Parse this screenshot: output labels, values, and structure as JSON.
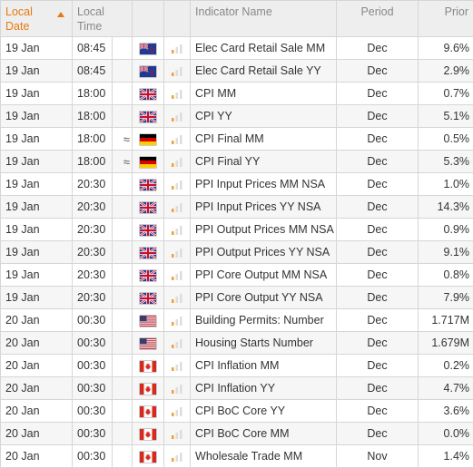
{
  "header": {
    "local_date": [
      "Local",
      "Date"
    ],
    "local_time": [
      "Local",
      "Time"
    ],
    "indicator": "Indicator Name",
    "period": "Period",
    "prior": "Prior"
  },
  "colors": {
    "accent": "#e8790f",
    "bar_active": "#f0a030",
    "bar_inactive": "#dddddd"
  },
  "rows": [
    {
      "date": "19 Jan",
      "time": "08:45",
      "approx": "",
      "flag": "nz-flag-icon",
      "importance": 1,
      "indicator": "Elec Card Retail Sale MM",
      "period": "Dec",
      "prior": "9.6%"
    },
    {
      "date": "19 Jan",
      "time": "08:45",
      "approx": "",
      "flag": "nz-flag-icon",
      "importance": 1,
      "indicator": "Elec Card Retail Sale YY",
      "period": "Dec",
      "prior": "2.9%"
    },
    {
      "date": "19 Jan",
      "time": "18:00",
      "approx": "",
      "flag": "uk-flag-icon",
      "importance": 1,
      "indicator": "CPI MM",
      "period": "Dec",
      "prior": "0.7%"
    },
    {
      "date": "19 Jan",
      "time": "18:00",
      "approx": "",
      "flag": "uk-flag-icon",
      "importance": 1,
      "indicator": "CPI YY",
      "period": "Dec",
      "prior": "5.1%"
    },
    {
      "date": "19 Jan",
      "time": "18:00",
      "approx": "≈",
      "flag": "de-flag-icon",
      "importance": 1,
      "indicator": "CPI Final MM",
      "period": "Dec",
      "prior": "0.5%"
    },
    {
      "date": "19 Jan",
      "time": "18:00",
      "approx": "≈",
      "flag": "de-flag-icon",
      "importance": 1,
      "indicator": "CPI Final YY",
      "period": "Dec",
      "prior": "5.3%"
    },
    {
      "date": "19 Jan",
      "time": "20:30",
      "approx": "",
      "flag": "uk-flag-icon",
      "importance": 1,
      "indicator": "PPI Input Prices MM NSA",
      "period": "Dec",
      "prior": "1.0%"
    },
    {
      "date": "19 Jan",
      "time": "20:30",
      "approx": "",
      "flag": "uk-flag-icon",
      "importance": 1,
      "indicator": "PPI Input Prices YY NSA",
      "period": "Dec",
      "prior": "14.3%"
    },
    {
      "date": "19 Jan",
      "time": "20:30",
      "approx": "",
      "flag": "uk-flag-icon",
      "importance": 1,
      "indicator": "PPI Output Prices MM NSA",
      "period": "Dec",
      "prior": "0.9%"
    },
    {
      "date": "19 Jan",
      "time": "20:30",
      "approx": "",
      "flag": "uk-flag-icon",
      "importance": 1,
      "indicator": "PPI Output Prices YY NSA",
      "period": "Dec",
      "prior": "9.1%"
    },
    {
      "date": "19 Jan",
      "time": "20:30",
      "approx": "",
      "flag": "uk-flag-icon",
      "importance": 1,
      "indicator": "PPI Core Output MM NSA",
      "period": "Dec",
      "prior": "0.8%"
    },
    {
      "date": "19 Jan",
      "time": "20:30",
      "approx": "",
      "flag": "uk-flag-icon",
      "importance": 1,
      "indicator": "PPI Core Output YY NSA",
      "period": "Dec",
      "prior": "7.9%"
    },
    {
      "date": "20 Jan",
      "time": "00:30",
      "approx": "",
      "flag": "us-flag-icon",
      "importance": 1,
      "indicator": "Building Permits: Number",
      "period": "Dec",
      "prior": "1.717M"
    },
    {
      "date": "20 Jan",
      "time": "00:30",
      "approx": "",
      "flag": "us-flag-icon",
      "importance": 1,
      "indicator": "Housing Starts Number",
      "period": "Dec",
      "prior": "1.679M"
    },
    {
      "date": "20 Jan",
      "time": "00:30",
      "approx": "",
      "flag": "ca-flag-icon",
      "importance": 1,
      "indicator": "CPI Inflation MM",
      "period": "Dec",
      "prior": "0.2%"
    },
    {
      "date": "20 Jan",
      "time": "00:30",
      "approx": "",
      "flag": "ca-flag-icon",
      "importance": 1,
      "indicator": "CPI Inflation YY",
      "period": "Dec",
      "prior": "4.7%"
    },
    {
      "date": "20 Jan",
      "time": "00:30",
      "approx": "",
      "flag": "ca-flag-icon",
      "importance": 1,
      "indicator": "CPI BoC Core YY",
      "period": "Dec",
      "prior": "3.6%"
    },
    {
      "date": "20 Jan",
      "time": "00:30",
      "approx": "",
      "flag": "ca-flag-icon",
      "importance": 1,
      "indicator": "CPI BoC Core MM",
      "period": "Dec",
      "prior": "0.0%"
    },
    {
      "date": "20 Jan",
      "time": "00:30",
      "approx": "",
      "flag": "ca-flag-icon",
      "importance": 1,
      "indicator": "Wholesale Trade MM",
      "period": "Nov",
      "prior": "1.4%"
    }
  ]
}
